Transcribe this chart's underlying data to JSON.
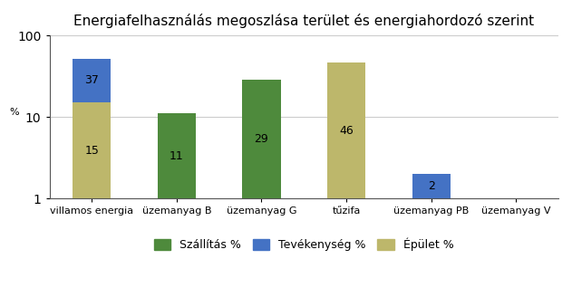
{
  "title": "Energiafelhasználás megoszlása terület és energiahordozó szerint",
  "categories": [
    "villamos energia",
    "üzemanyag B",
    "üzemanyag G",
    "tűzifa",
    "üzemanyag PB",
    "üzemanyag V"
  ],
  "series": [
    {
      "name": "Szállítás %",
      "color": "#4e8a3c",
      "values": [
        0,
        11,
        29,
        0,
        0,
        0
      ],
      "labels": [
        "",
        "11",
        "29",
        "",
        "",
        ""
      ]
    },
    {
      "name": "Tevékenység %",
      "color": "#4472c4",
      "values": [
        37,
        0,
        0,
        0,
        2,
        0
      ],
      "labels": [
        "37",
        "",
        "",
        "",
        "2",
        ""
      ]
    },
    {
      "name": "Épület %",
      "color": "#bdb76b",
      "values": [
        15,
        0,
        0,
        46,
        0,
        0
      ],
      "labels": [
        "15",
        "",
        "",
        "46",
        "",
        ""
      ]
    }
  ],
  "ylabel": "%",
  "ylim": [
    1,
    100
  ],
  "yticks": [
    1,
    10,
    100
  ],
  "background_color": "#ffffff",
  "title_fontsize": 11,
  "label_fontsize": 9,
  "tick_fontsize": 8,
  "legend_fontsize": 9,
  "bar_width": 0.45
}
